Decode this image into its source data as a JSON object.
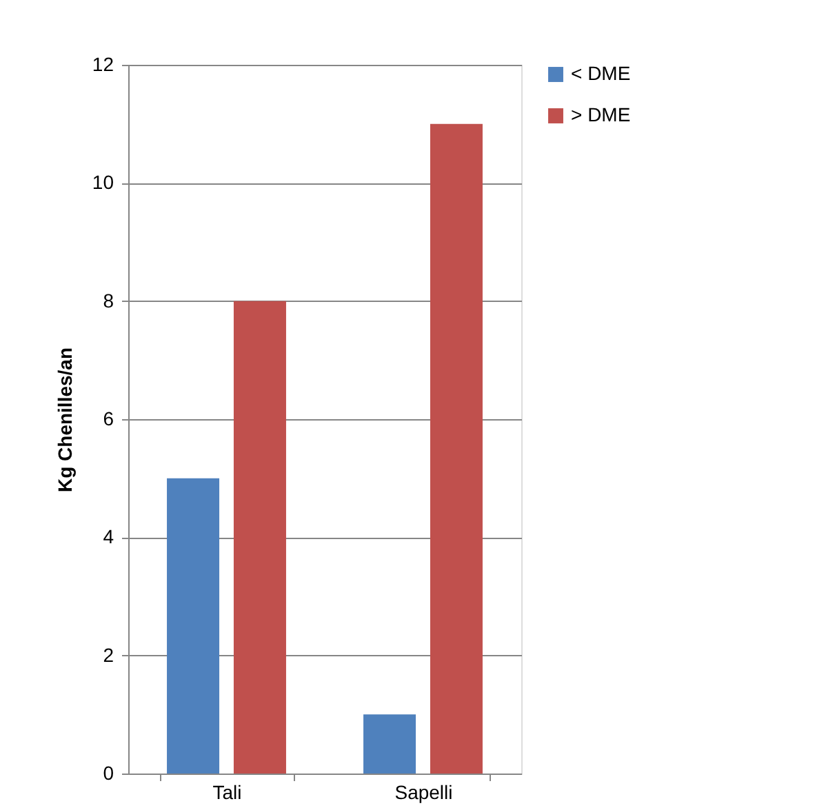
{
  "chart_data": {
    "type": "bar",
    "ylabel": "Kg Chenilles/an",
    "categories": [
      "Tali",
      "Sapelli"
    ],
    "series": [
      {
        "name": "< DME",
        "color": "#4f81bd",
        "values": [
          5,
          1
        ]
      },
      {
        "name": "> DME",
        "color": "#c0504d",
        "values": [
          8,
          11
        ]
      }
    ],
    "ylim": [
      0,
      12
    ],
    "yticks": [
      0,
      2,
      4,
      6,
      8,
      10,
      12
    ],
    "grid": "y",
    "legend": "right"
  }
}
